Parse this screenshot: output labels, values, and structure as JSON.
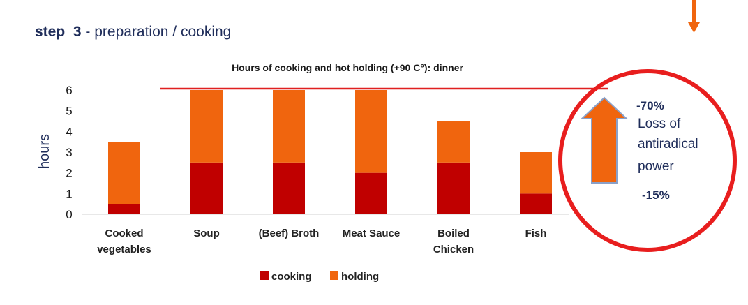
{
  "heading": {
    "step_label": "step",
    "step_number": "3",
    "rest": "- preparation / cooking"
  },
  "chart_data": {
    "type": "bar",
    "stacked": true,
    "title": "Hours of cooking and hot holding (+90 C°): dinner",
    "ylabel": "hours",
    "xlabel": "",
    "ylim": [
      0,
      6
    ],
    "yticks": [
      0,
      1,
      2,
      3,
      4,
      5,
      6
    ],
    "categories": [
      "Cooked vegetables",
      "Soup",
      "(Beef) Broth",
      "Meat Sauce",
      "Boiled Chicken",
      "Fish"
    ],
    "category_lines": [
      [
        "Cooked",
        "vegetables"
      ],
      [
        "Soup"
      ],
      [
        "(Beef) Broth"
      ],
      [
        "Meat Sauce"
      ],
      [
        "Boiled",
        "Chicken"
      ],
      [
        "Fish"
      ]
    ],
    "series": [
      {
        "name": "cooking",
        "color": "#c00000",
        "values": [
          0.5,
          2.5,
          2.5,
          2.0,
          2.5,
          1.0
        ]
      },
      {
        "name": "holding",
        "color": "#f0650e",
        "values": [
          3.0,
          3.5,
          3.5,
          4.0,
          2.0,
          2.0
        ]
      }
    ],
    "legend_position": "bottom",
    "grid": false,
    "reference_line": {
      "value": 6,
      "color": "#e02020"
    }
  },
  "annotation": {
    "top_value": "-70%",
    "lines": [
      "Loss of",
      "antiradical",
      "power"
    ],
    "bottom_value": "-15%",
    "circle_color": "#e81e1e",
    "arrow_color": "#f0650e",
    "arrow_outline": "#8aa0c8"
  },
  "corner_arrow_color": "#f0650e"
}
